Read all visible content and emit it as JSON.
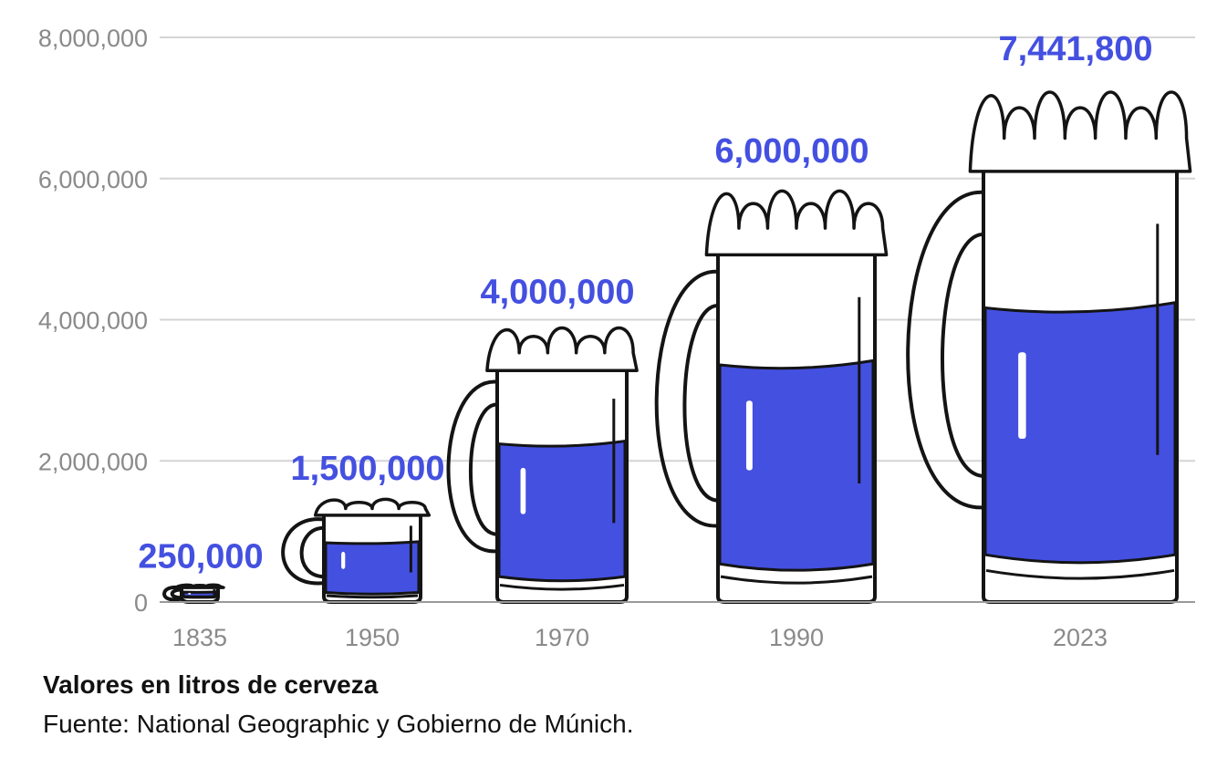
{
  "chart_data": {
    "type": "bar",
    "categories": [
      "1835",
      "1950",
      "1970",
      "1990",
      "2023"
    ],
    "values": [
      250000,
      1500000,
      4000000,
      6000000,
      7441800
    ],
    "value_labels": [
      "250,000",
      "1,500,000",
      "4,000,000",
      "6,000,000",
      "7,441,800"
    ],
    "yticks": [
      0,
      2000000,
      4000000,
      6000000,
      8000000
    ],
    "ytick_labels": [
      "0",
      "2,000,000",
      "4,000,000",
      "6,000,000",
      "8,000,000"
    ],
    "ylim": [
      0,
      8000000
    ],
    "grid": true,
    "legend": "none",
    "mark": "beer-mug",
    "colors": {
      "beer": "#4450e0",
      "label": "#4450e0",
      "outline": "#141414",
      "grid": "#d4d4d4",
      "tick": "#8a8a8a"
    }
  },
  "footer": {
    "note": "Valores en litros de cerveza",
    "source": "Fuente: National Geographic y Gobierno de Múnich."
  }
}
